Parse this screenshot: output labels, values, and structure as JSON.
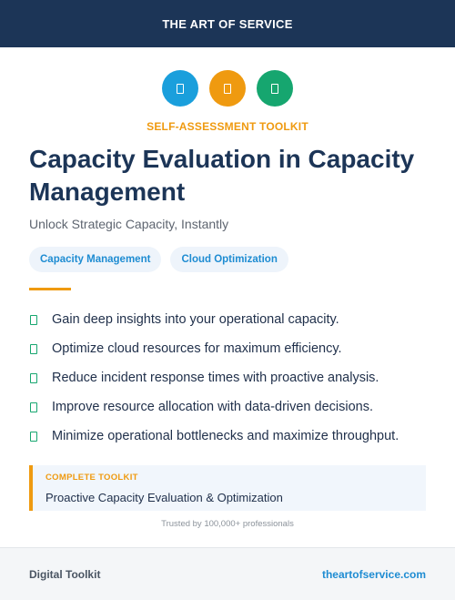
{
  "header": {
    "brand": "THE ART OF SERVICE"
  },
  "icons": [
    {
      "name": "document-icon",
      "color": "#1a9fdc"
    },
    {
      "name": "clipboard-icon",
      "color": "#ef9a10"
    },
    {
      "name": "checklist-icon",
      "color": "#16a66f"
    }
  ],
  "kicker": "SELF-ASSESSMENT TOOLKIT",
  "title": "Capacity Evaluation in Capacity Management",
  "subtitle": "Unlock Strategic Capacity, Instantly",
  "tags": [
    "Capacity Management",
    "Cloud Optimization"
  ],
  "bullets": [
    "Gain deep insights into your operational capacity.",
    "Optimize cloud resources for maximum efficiency.",
    "Reduce incident response times with proactive analysis.",
    "Improve resource allocation with data-driven decisions.",
    "Minimize operational bottlenecks and maximize throughput."
  ],
  "toolkit": {
    "label": "COMPLETE TOOLKIT",
    "text": "Proactive Capacity Evaluation & Optimization"
  },
  "trusted": "Trusted by 100,000+ professionals",
  "footer": {
    "left": "Digital Toolkit",
    "right": "theartofservice.com"
  },
  "colors": {
    "navy": "#1c3557",
    "orange": "#ef9a10",
    "blue": "#1e8cd2",
    "green": "#16a66f"
  }
}
